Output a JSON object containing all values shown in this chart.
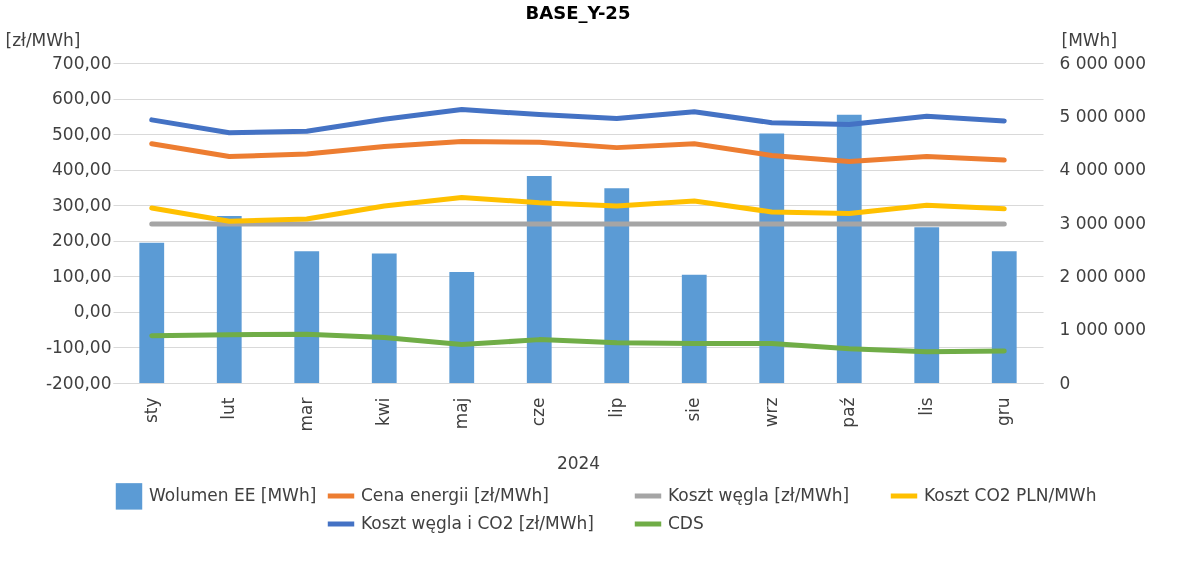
{
  "chart_data": {
    "type": "line",
    "title": "BASE_Y-25",
    "xlabel": "2024",
    "ylabel": "[zł/MWh]",
    "y2label": "[MWh]",
    "categories": [
      "sty",
      "lut",
      "mar",
      "kwi",
      "maj",
      "cze",
      "lip",
      "sie",
      "wrz",
      "paź",
      "lis",
      "gru"
    ],
    "series": [
      {
        "name": "Wolumen EE [MWh]",
        "type": "bar",
        "axis": "y2",
        "color": "#5b9bd5",
        "values": [
          2630000,
          3130000,
          2470000,
          2430000,
          2080000,
          3880000,
          3650000,
          2030000,
          4680000,
          5030000,
          2920000,
          2470000
        ]
      },
      {
        "name": "Cena energii [zł/MWh]",
        "color": "#ed7d31",
        "values": [
          473,
          437,
          444,
          465,
          479,
          477,
          462,
          473,
          440,
          423,
          437,
          427
        ]
      },
      {
        "name": "Koszt węgla [zł/MWh]",
        "color": "#a5a5a5",
        "values": [
          247,
          247,
          247,
          247,
          247,
          247,
          247,
          247,
          247,
          247,
          247,
          247
        ]
      },
      {
        "name": "Koszt CO2 PLN/MWh",
        "color": "#ffc000",
        "values": [
          292,
          255,
          261,
          298,
          322,
          307,
          298,
          312,
          281,
          277,
          300,
          290
        ]
      },
      {
        "name": "Koszt węgla i CO2 [zł/MWh]",
        "color": "#4472c4",
        "values": [
          540,
          504,
          508,
          542,
          569,
          555,
          544,
          563,
          532,
          527,
          550,
          537
        ]
      },
      {
        "name": "CDS",
        "color": "#70ad47",
        "values": [
          -67,
          -64,
          -63,
          -72,
          -92,
          -78,
          -87,
          -89,
          -89,
          -104,
          -112,
          -110
        ]
      }
    ],
    "ylim": [
      -200,
      700
    ],
    "yticks": [
      {
        "value": -200,
        "label": "-200,00"
      },
      {
        "value": -100,
        "label": "-100,00"
      },
      {
        "value": 0,
        "label": "0,00"
      },
      {
        "value": 100,
        "label": "100,00"
      },
      {
        "value": 200,
        "label": "200,00"
      },
      {
        "value": 300,
        "label": "300,00"
      },
      {
        "value": 400,
        "label": "400,00"
      },
      {
        "value": 500,
        "label": "500,00"
      },
      {
        "value": 600,
        "label": "600,00"
      },
      {
        "value": 700,
        "label": "700,00"
      }
    ],
    "y2lim": [
      0,
      6000000
    ],
    "y2ticks": [
      {
        "value": 0,
        "label": "0"
      },
      {
        "value": 1000000,
        "label": "1 000 000"
      },
      {
        "value": 2000000,
        "label": "2 000 000"
      },
      {
        "value": 3000000,
        "label": "3 000 000"
      },
      {
        "value": 4000000,
        "label": "4 000 000"
      },
      {
        "value": 5000000,
        "label": "5 000 000"
      },
      {
        "value": 6000000,
        "label": "6 000 000"
      }
    ],
    "grid": "y",
    "legend": "bottom",
    "marker": "none",
    "line_style": "solid"
  }
}
